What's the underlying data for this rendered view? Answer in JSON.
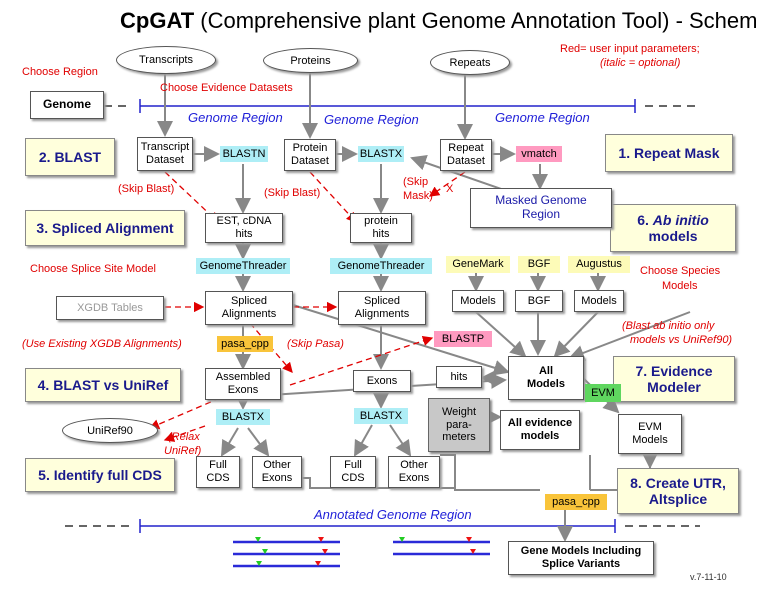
{
  "title": {
    "bold": "CpGAT",
    "rest": " (Comprehensive plant Genome Annotation Tool) - Schema"
  },
  "legend": {
    "line1": "Red= user input parameters;",
    "line2": "(italic = optional)"
  },
  "inputs": {
    "transcripts": "Transcripts",
    "proteins": "Proteins",
    "repeats": "Repeats",
    "uniref": "UniRef90"
  },
  "labels": {
    "choose_region": "Choose Region",
    "choose_evidence": "Choose Evidence Datasets",
    "choose_splice": "Choose Splice Site Model",
    "choose_species_1": "Choose Species",
    "choose_species_2": "Models",
    "skip_blast": "(Skip Blast)",
    "skip_mask_1": "(Skip",
    "skip_mask_2": "Mask)",
    "x_mark": "X",
    "use_existing": "(Use Existing XGDB Alignments)",
    "skip_pasa": "(Skip Pasa)",
    "relax_1": "(Relax",
    "relax_2": "UniRef)",
    "blast_ab_1": "(Blast ab initio only",
    "blast_ab_2": "models vs UniRef90)",
    "version": "v.7-11-10"
  },
  "regions": {
    "genome_region": "Genome Region",
    "annotated": "Annotated Genome Region"
  },
  "steps": {
    "s1": "1. Repeat Mask",
    "s2": "2. BLAST",
    "s3": "3. Spliced Alignment",
    "s4": "4. BLAST vs UniRef",
    "s5": "5. Identify full CDS",
    "s6_em": "Ab initio",
    "s6_pre": "6. ",
    "s6_line2": "models",
    "s7_1": "7. Evidence",
    "s7_2": "Modeler",
    "s8_1": "8. Create UTR,",
    "s8_2": "Altsplice"
  },
  "nodes": {
    "genome": "Genome",
    "transcript_dataset_1": "Transcript",
    "transcript_dataset_2": "Dataset",
    "protein_dataset_1": "Protein",
    "protein_dataset_2": "Dataset",
    "repeat_dataset_1": "Repeat",
    "repeat_dataset_2": "Dataset",
    "blastn": "BLASTN",
    "blastx": "BLASTX",
    "vmatch": "vmatch",
    "masked_1": "Masked Genome",
    "masked_2": "Region",
    "est_1": "EST, cDNA",
    "est_2": "hits",
    "protein_hits_1": "protein",
    "protein_hits_2": "hits",
    "genomethreader": "GenomeThreader",
    "genemark": "GeneMark",
    "bgf": "BGF",
    "augustus": "Augustus",
    "models": "Models",
    "xgdb": "XGDB Tables",
    "spliced_1": "Spliced",
    "spliced_2": "Alignments",
    "pasa_cpp": "pasa_cpp",
    "blastp": "BLASTP",
    "hits": "hits",
    "all_models_1": "All",
    "all_models_2": "Models",
    "evm": "EVM",
    "evm_models_1": "EVM",
    "evm_models_2": "Models",
    "assembled_1": "Assembled",
    "assembled_2": "Exons",
    "exons": "Exons",
    "weight_1": "Weight",
    "weight_2": "para-",
    "weight_3": "meters",
    "all_evidence_1": "All evidence",
    "all_evidence_2": "models",
    "full_cds_1": "Full",
    "full_cds_2": "CDS",
    "other_exons_1": "Other",
    "other_exons_2": "Exons",
    "gene_models_1": "Gene Models Including",
    "gene_models_2": "Splice Variants"
  }
}
